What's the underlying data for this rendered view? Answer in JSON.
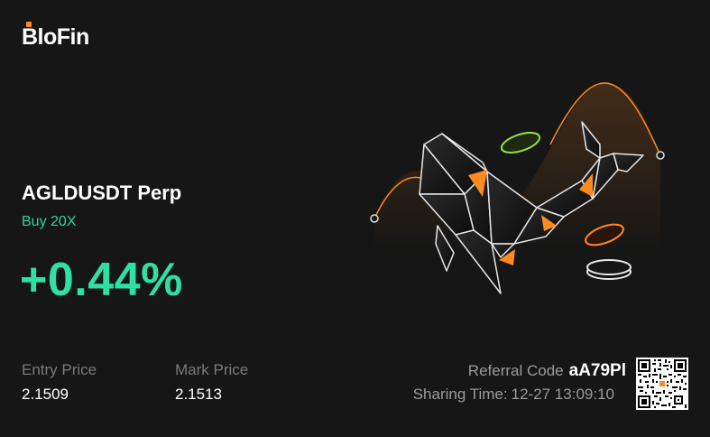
{
  "brand": {
    "logo_text": "BloFin",
    "accent_color": "#ff8a1f"
  },
  "position": {
    "pair": "AGLDUSDT Perp",
    "side_leverage": "Buy 20X",
    "pnl_percent": "+0.44%",
    "pnl_color": "#2ee0a4"
  },
  "stats": {
    "entry_label": "Entry Price",
    "entry_value": "2.1509",
    "mark_label": "Mark Price",
    "mark_value": "2.1513"
  },
  "referral": {
    "label": "Referral Code",
    "code": "aA79Pl",
    "sharing_label": "Sharing Time:",
    "sharing_time": "12-27 13:09:10"
  },
  "illustration": {
    "icon": "whale-illustration-icon",
    "qr_icon": "qr-code-icon"
  }
}
